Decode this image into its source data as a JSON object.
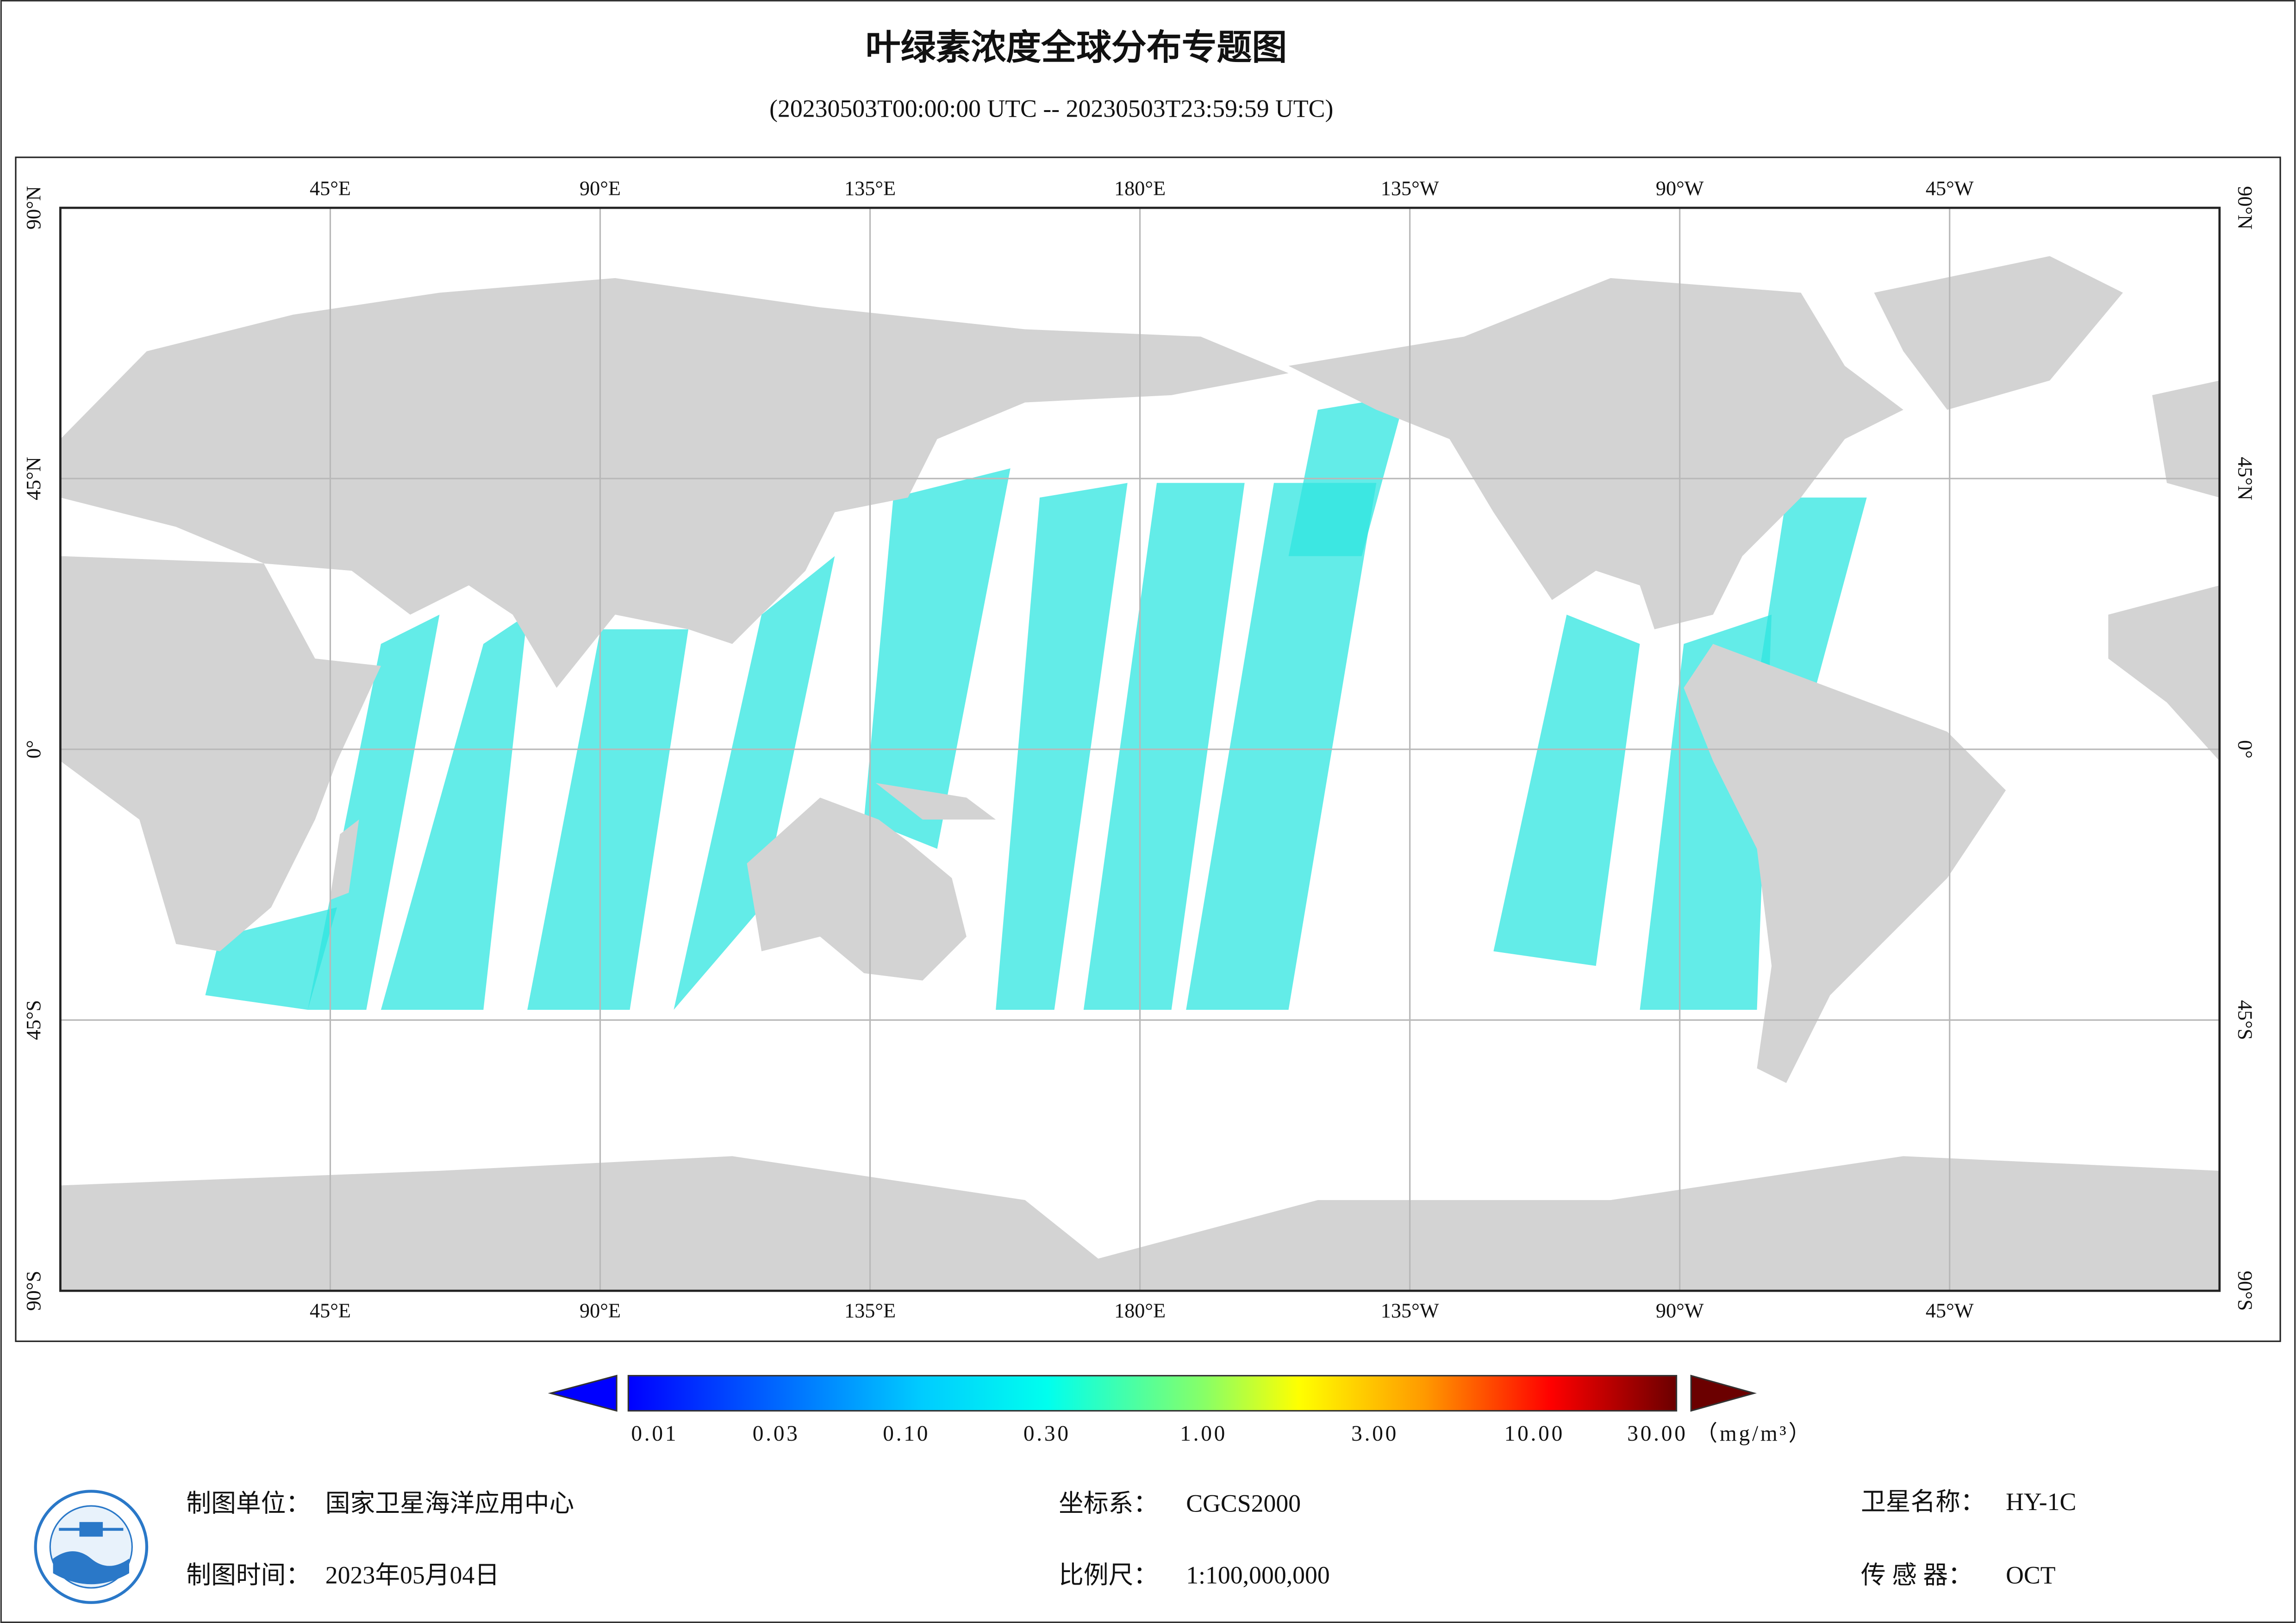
{
  "header": {
    "title": "叶绿素浓度全球分布专题图",
    "subtitle": "(20230503T00:00:00 UTC -- 20230503T23:59:59 UTC)"
  },
  "map": {
    "lon_labels": [
      "45°E",
      "90°E",
      "135°E",
      "180°E",
      "135°W",
      "90°W",
      "45°W"
    ],
    "lat_labels": [
      "90°N",
      "45°N",
      "0°",
      "45°S",
      "90°S"
    ]
  },
  "legend": {
    "ticks": [
      "0.01",
      "0.03",
      "0.10",
      "0.30",
      "1.00",
      "3.00",
      "10.00",
      "30.00"
    ],
    "unit": "（mg/m³）"
  },
  "footer": {
    "producer": {
      "label": "制图单位：",
      "value": "国家卫星海洋应用中心"
    },
    "date": {
      "label": "制图时间：",
      "value": "2023年05月04日"
    },
    "crs": {
      "label": "坐标系：",
      "value": "CGCS2000"
    },
    "scale": {
      "label": "比例尺：",
      "value": "1:100,000,000"
    },
    "satellite": {
      "label": "卫星名称：",
      "value": "HY-1C"
    },
    "sensor": {
      "label": "传 感 器：",
      "value": "OCT"
    }
  }
}
